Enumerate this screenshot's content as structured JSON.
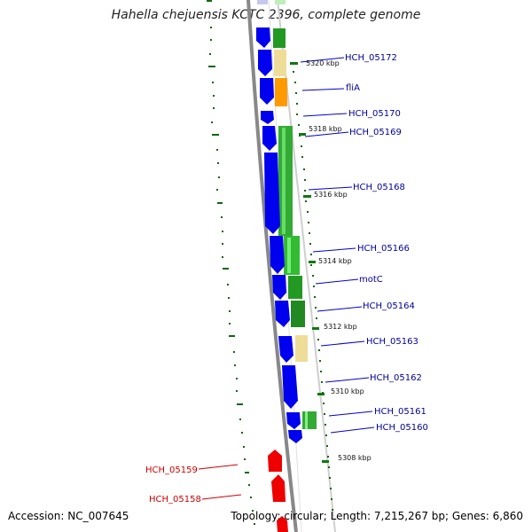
{
  "header": {
    "title": "Hahella chejuensis KCTC 2396, complete genome"
  },
  "footer": {
    "accession": "Accession: NC_007645",
    "summary": "Topology: circular; Length: 7,215,267 bp; Genes: 6,860"
  },
  "colors": {
    "forward_gene": "#0000ee",
    "reverse_gene": "#ee0000",
    "cog_green": "#33aa33",
    "cog_yellow": "#eedd99",
    "cog_orange": "#ff9900",
    "backbone": "#888888",
    "gc_tick": "#116611",
    "label_forward": "#000099",
    "label_reverse": "#cc0000"
  },
  "labels_forward": [
    "HCH_05172",
    "fliA",
    "HCH_05170",
    "HCH_05169",
    "HCH_05168",
    "HCH_05166",
    "motC",
    "HCH_05164",
    "HCH_05163",
    "HCH_05162",
    "HCH_05161",
    "HCH_05160"
  ],
  "labels_reverse": [
    "HCH_05159",
    "HCH_05158"
  ],
  "scale_labels": [
    "5320 kbp",
    "5318 kbp",
    "5316 kbp",
    "5314 kbp",
    "5312 kbp",
    "5310 kbp",
    "5308 kbp"
  ]
}
